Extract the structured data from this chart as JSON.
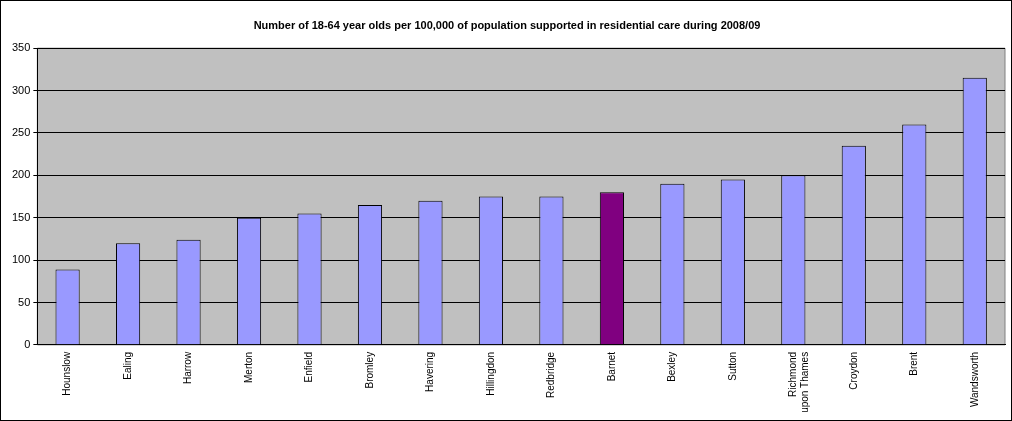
{
  "chart_data": {
    "type": "bar",
    "title": "Number of 18-64 year olds per 100,000 of population supported in residential care during 2008/09",
    "categories": [
      "Hounslow",
      "Ealing",
      "Harrow",
      "Merton",
      "Enfield",
      "Bromley",
      "Havering",
      "Hillingdon",
      "Redbridge",
      "Barnet",
      "Bexley",
      "Sutton",
      "Richmond upon Thames",
      "Croydon",
      "Brent",
      "Wandsworth"
    ],
    "values": [
      89,
      120,
      124,
      150,
      155,
      165,
      170,
      175,
      175,
      180,
      190,
      195,
      200,
      235,
      260,
      315
    ],
    "colors": [
      "#9999ff",
      "#9999ff",
      "#9999ff",
      "#9999ff",
      "#9999ff",
      "#9999ff",
      "#9999ff",
      "#9999ff",
      "#9999ff",
      "#800080",
      "#9999ff",
      "#9999ff",
      "#9999ff",
      "#9999ff",
      "#9999ff",
      "#9999ff"
    ],
    "ylim": [
      0,
      350
    ],
    "yticks": [
      0,
      50,
      100,
      150,
      200,
      250,
      300,
      350
    ],
    "grid": "y",
    "legend": false
  }
}
